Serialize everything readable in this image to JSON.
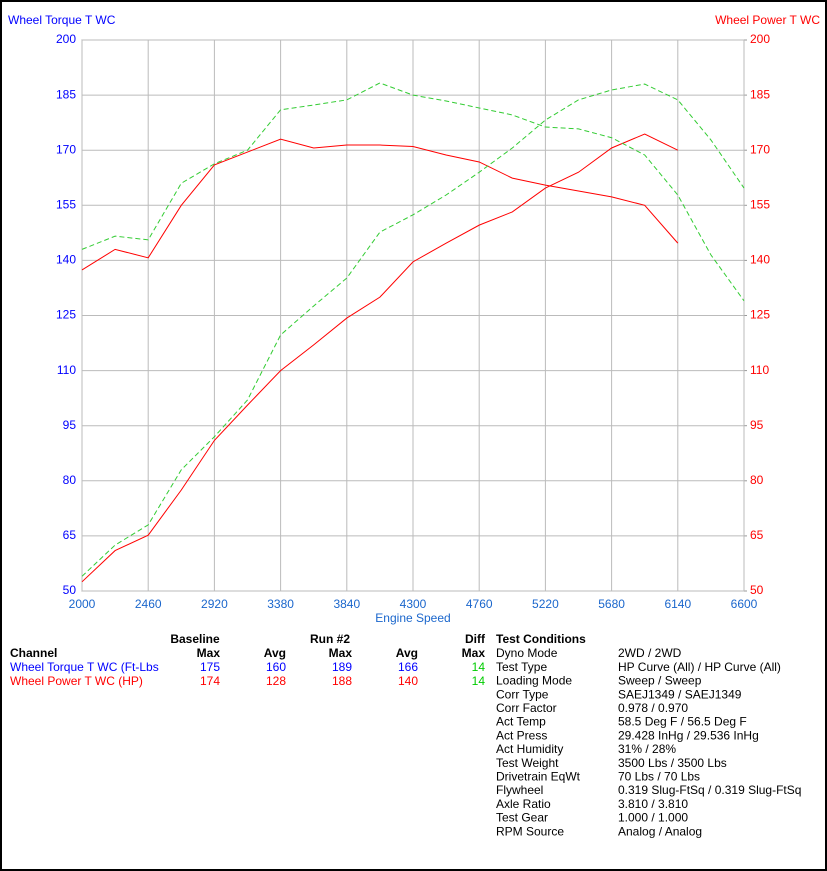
{
  "chart_data": {
    "type": "line",
    "y_title": "Wheel Torque T WC",
    "y2_title": "Wheel Power T WC",
    "x_title": "Engine Speed",
    "x": [
      2000,
      2230,
      2460,
      2690,
      2920,
      3150,
      3380,
      3610,
      3840,
      4070,
      4300,
      4530,
      4760,
      4990,
      5220,
      5450,
      5680,
      5910,
      6140,
      6370,
      6600
    ],
    "xlim": [
      2000,
      6600
    ],
    "xticks": [
      2000,
      2460,
      2920,
      3380,
      3840,
      4300,
      4760,
      5220,
      5680,
      6140,
      6600
    ],
    "ylim": [
      50,
      200
    ],
    "yticks": [
      50,
      65,
      80,
      95,
      110,
      125,
      140,
      155,
      170,
      185,
      200
    ],
    "y2lim": [
      50,
      200
    ],
    "y2ticks": [
      50,
      65,
      80,
      95,
      110,
      125,
      140,
      155,
      170,
      185,
      200
    ],
    "grid": true,
    "series": [
      {
        "color": "#ff0000",
        "dash": false,
        "axis": "y",
        "values": [
          137.4,
          143,
          140.7,
          155,
          166,
          169.5,
          173,
          170.6,
          171.4,
          171.4,
          171,
          168.7,
          166.8,
          162.4,
          160.5,
          158.9,
          157.3,
          155,
          144.7,
          null,
          null
        ]
      },
      {
        "color": "#ff0000",
        "dash": false,
        "axis": "y2",
        "values": [
          52.5,
          61,
          65.2,
          77.5,
          91,
          100.6,
          110,
          117,
          124.3,
          130,
          139.6,
          144.7,
          149.6,
          153.2,
          159.7,
          164,
          170.6,
          174.4,
          170,
          null,
          null
        ]
      },
      {
        "color": "#33cc33",
        "dash": true,
        "axis": "y",
        "values": [
          143,
          146.6,
          145.6,
          161,
          166.3,
          170,
          181,
          182.3,
          183.7,
          188.3,
          185,
          183.4,
          181.5,
          179.6,
          176.3,
          175.8,
          173.4,
          168.7,
          157.8,
          141.5,
          129
        ]
      },
      {
        "color": "#33cc33",
        "dash": true,
        "axis": "y2",
        "values": [
          54,
          62.5,
          68,
          83,
          92,
          102,
          119.7,
          127.6,
          135.2,
          147.7,
          152.4,
          157.8,
          164,
          170.6,
          178.2,
          183.7,
          186.4,
          188,
          183.7,
          172.8,
          159.7
        ]
      }
    ]
  },
  "summary": {
    "groups": [
      "Baseline",
      "Run #2",
      "Diff"
    ],
    "columns": [
      "Channel",
      "Max",
      "Avg",
      "Max",
      "Avg",
      "Max"
    ],
    "rows": [
      [
        "Wheel Torque T WC (Ft-Lbs",
        175,
        160,
        189,
        166,
        14
      ],
      [
        "Wheel Power T WC (HP)",
        174,
        128,
        188,
        140,
        14
      ]
    ]
  },
  "test_conditions": {
    "title": "Test Conditions",
    "rows": [
      [
        "Dyno Mode",
        "2WD / 2WD"
      ],
      [
        "Test Type",
        "HP Curve (All) / HP Curve (All)"
      ],
      [
        "Loading Mode",
        "Sweep / Sweep"
      ],
      [
        "Corr Type",
        "SAEJ1349 / SAEJ1349"
      ],
      [
        "Corr Factor",
        "0.978 / 0.970"
      ],
      [
        "Act Temp",
        "58.5 Deg F / 56.5 Deg F"
      ],
      [
        "Act Press",
        "29.428 InHg / 29.536 InHg"
      ],
      [
        "Act Humidity",
        "31% / 28%"
      ],
      [
        "Test Weight",
        "3500 Lbs / 3500 Lbs"
      ],
      [
        "Drivetrain EqWt",
        "70 Lbs / 70 Lbs"
      ],
      [
        "Flywheel",
        "0.319 Slug-FtSq / 0.319 Slug-FtSq"
      ],
      [
        "Axle Ratio",
        "3.810 / 3.810"
      ],
      [
        "Test Gear",
        "1.000 / 1.000"
      ],
      [
        "RPM Source",
        "Analog / Analog"
      ]
    ]
  }
}
